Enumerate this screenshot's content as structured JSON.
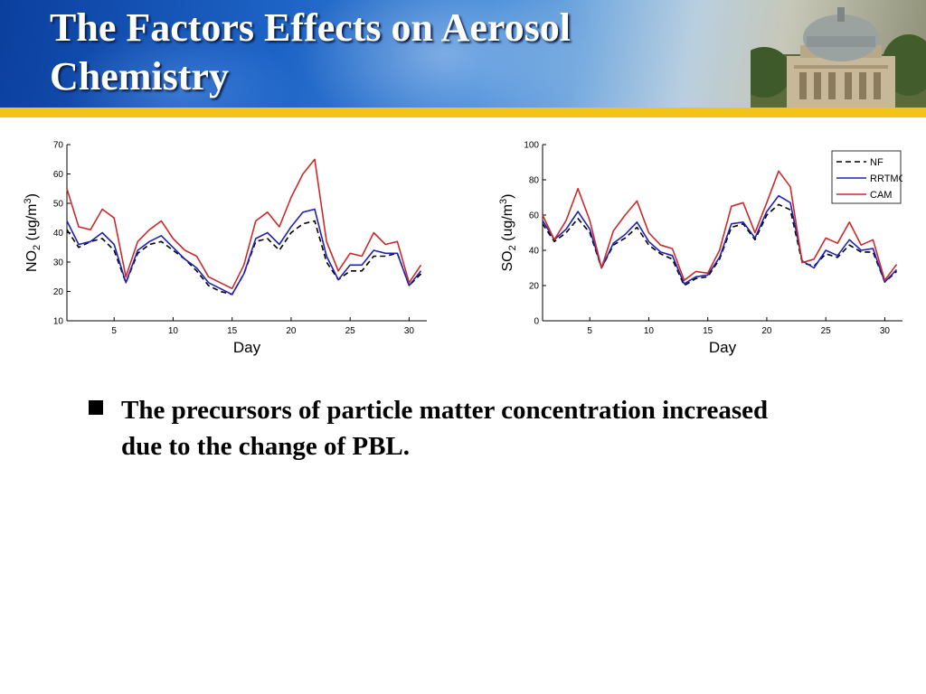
{
  "slide": {
    "title_line1": "The Factors Effects on Aerosol",
    "title_line2": "Chemistry",
    "bullet": "The precursors of particle matter concentration increased due to the change of PBL."
  },
  "colors": {
    "header_blue": "#1d63c6",
    "gold_bar": "#f4c318",
    "nf": "#000000",
    "rrtmg": "#1f22b4",
    "cam": "#cc2a2a"
  },
  "chart_data": [
    {
      "type": "line",
      "xlabel": "Day",
      "ylabel_prefix": "NO",
      "ylabel_sub": "2",
      "ylabel_unit": " (ug/m",
      "ylabel_sup": "3",
      "ylabel_close": ")",
      "xlim": [
        1,
        31.5
      ],
      "ylim": [
        10,
        70
      ],
      "xticks": [
        5,
        10,
        15,
        20,
        25,
        30
      ],
      "yticks": [
        10,
        20,
        30,
        40,
        50,
        60,
        70
      ],
      "grid": false,
      "legend": "none",
      "x": [
        1,
        2,
        3,
        4,
        5,
        6,
        7,
        8,
        9,
        10,
        11,
        12,
        13,
        14,
        15,
        16,
        17,
        18,
        19,
        20,
        21,
        22,
        23,
        24,
        25,
        26,
        27,
        28,
        29,
        30,
        31
      ],
      "series": [
        {
          "name": "NF",
          "style": "dashed",
          "color": "#000000",
          "values": [
            41,
            35,
            37,
            38,
            34,
            23,
            33,
            36,
            37,
            34,
            31,
            27,
            22,
            20,
            19,
            26,
            37,
            38,
            34,
            40,
            43,
            44,
            30,
            24,
            27,
            27,
            32,
            32,
            33,
            22,
            26
          ]
        },
        {
          "name": "RRTMG",
          "style": "solid",
          "color": "#1f22b4",
          "values": [
            44,
            36,
            37,
            40,
            36,
            23,
            34,
            37,
            39,
            35,
            31,
            28,
            23,
            21,
            19,
            26,
            38,
            40,
            36,
            42,
            47,
            48,
            32,
            24,
            29,
            29,
            34,
            33,
            33,
            22,
            27
          ]
        },
        {
          "name": "CAM",
          "style": "solid",
          "color": "#cc2a2a",
          "values": [
            55,
            42,
            41,
            48,
            45,
            25,
            37,
            41,
            44,
            38,
            34,
            32,
            25,
            23,
            21,
            29,
            44,
            47,
            42,
            52,
            60,
            65,
            37,
            27,
            33,
            32,
            40,
            36,
            37,
            23,
            29
          ]
        }
      ]
    },
    {
      "type": "line",
      "xlabel": "Day",
      "ylabel_prefix": "SO",
      "ylabel_sub": "2",
      "ylabel_unit": " (ug/m",
      "ylabel_sup": "3",
      "ylabel_close": ")",
      "xlim": [
        1,
        31.5
      ],
      "ylim": [
        0,
        100
      ],
      "xticks": [
        5,
        10,
        15,
        20,
        25,
        30
      ],
      "yticks": [
        0,
        20,
        40,
        60,
        80,
        100
      ],
      "grid": false,
      "legend": "top-right",
      "x": [
        1,
        2,
        3,
        4,
        5,
        6,
        7,
        8,
        9,
        10,
        11,
        12,
        13,
        14,
        15,
        16,
        17,
        18,
        19,
        20,
        21,
        22,
        23,
        24,
        25,
        26,
        27,
        28,
        29,
        30,
        31
      ],
      "series": [
        {
          "name": "NF",
          "style": "dashed",
          "color": "#000000",
          "values": [
            55,
            45,
            50,
            58,
            50,
            30,
            43,
            47,
            53,
            43,
            38,
            35,
            20,
            24,
            25,
            35,
            53,
            55,
            46,
            60,
            66,
            63,
            33,
            31,
            38,
            36,
            43,
            39,
            39,
            22,
            28
          ]
        },
        {
          "name": "RRTMG",
          "style": "solid",
          "color": "#1f22b4",
          "values": [
            57,
            46,
            52,
            62,
            52,
            30,
            44,
            49,
            56,
            45,
            39,
            37,
            21,
            25,
            26,
            36,
            55,
            56,
            47,
            62,
            71,
            67,
            34,
            30,
            40,
            37,
            46,
            40,
            41,
            22,
            29
          ]
        },
        {
          "name": "CAM",
          "style": "solid",
          "color": "#cc2a2a",
          "values": [
            60,
            46,
            57,
            75,
            57,
            30,
            51,
            60,
            68,
            50,
            43,
            41,
            23,
            28,
            27,
            40,
            65,
            67,
            50,
            67,
            85,
            76,
            33,
            35,
            47,
            44,
            56,
            43,
            46,
            23,
            32
          ]
        }
      ]
    }
  ]
}
